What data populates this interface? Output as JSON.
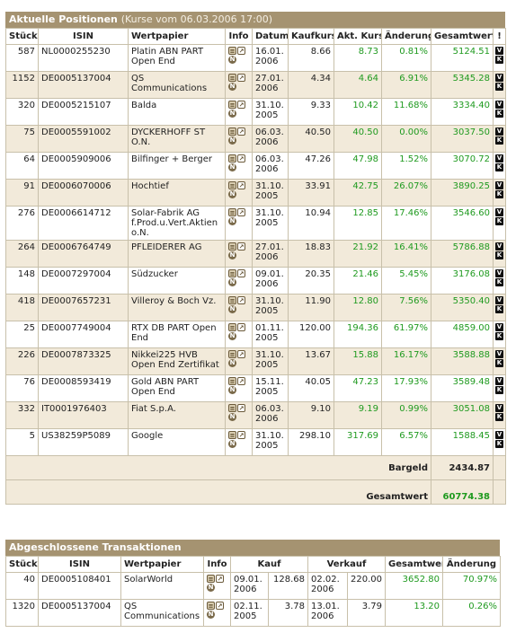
{
  "positions": {
    "title": "Aktuelle Positionen",
    "subtitle": "(Kurse vom 06.03.2006 17:00)",
    "headers": [
      "Stück",
      "ISIN",
      "Wertpapier",
      "Info",
      "Datum",
      "Kaufkurs",
      "Akt. Kurs",
      "Änderung",
      "Gesamtwert",
      "!"
    ],
    "rows": [
      {
        "qty": "587",
        "isin": "NL0000255230",
        "name": "Platin ABN PART Open End",
        "date": "16.01. 2006",
        "buy": "8.66",
        "cur": "8.73",
        "chg": "0.81%",
        "total": "5124.51"
      },
      {
        "qty": "1152",
        "isin": "DE0005137004",
        "name": "QS Communications",
        "date": "27.01. 2006",
        "buy": "4.34",
        "cur": "4.64",
        "chg": "6.91%",
        "total": "5345.28"
      },
      {
        "qty": "320",
        "isin": "DE0005215107",
        "name": "Balda",
        "date": "31.10. 2005",
        "buy": "9.33",
        "cur": "10.42",
        "chg": "11.68%",
        "total": "3334.40"
      },
      {
        "qty": "75",
        "isin": "DE0005591002",
        "name": "DYCKERHOFF ST O.N.",
        "date": "06.03. 2006",
        "buy": "40.50",
        "cur": "40.50",
        "chg": "0.00%",
        "total": "3037.50"
      },
      {
        "qty": "64",
        "isin": "DE0005909006",
        "name": "Bilfinger + Berger",
        "date": "06.03. 2006",
        "buy": "47.26",
        "cur": "47.98",
        "chg": "1.52%",
        "total": "3070.72"
      },
      {
        "qty": "91",
        "isin": "DE0006070006",
        "name": "Hochtief",
        "date": "31.10. 2005",
        "buy": "33.91",
        "cur": "42.75",
        "chg": "26.07%",
        "total": "3890.25"
      },
      {
        "qty": "276",
        "isin": "DE0006614712",
        "name": "Solar-Fabrik AG f.Prod.u.Vert.Aktien o.N.",
        "date": "31.10. 2005",
        "buy": "10.94",
        "cur": "12.85",
        "chg": "17.46%",
        "total": "3546.60"
      },
      {
        "qty": "264",
        "isin": "DE0006764749",
        "name": "PFLEIDERER AG",
        "date": "27.01. 2006",
        "buy": "18.83",
        "cur": "21.92",
        "chg": "16.41%",
        "total": "5786.88"
      },
      {
        "qty": "148",
        "isin": "DE0007297004",
        "name": "Südzucker",
        "date": "09.01. 2006",
        "buy": "20.35",
        "cur": "21.46",
        "chg": "5.45%",
        "total": "3176.08"
      },
      {
        "qty": "418",
        "isin": "DE0007657231",
        "name": "Villeroy & Boch Vz.",
        "date": "31.10. 2005",
        "buy": "11.90",
        "cur": "12.80",
        "chg": "7.56%",
        "total": "5350.40"
      },
      {
        "qty": "25",
        "isin": "DE0007749004",
        "name": "RTX DB PART Open End",
        "date": "01.11. 2005",
        "buy": "120.00",
        "cur": "194.36",
        "chg": "61.97%",
        "total": "4859.00"
      },
      {
        "qty": "226",
        "isin": "DE0007873325",
        "name": "Nikkei225 HVB Open End Zertifikat",
        "date": "31.10. 2005",
        "buy": "13.67",
        "cur": "15.88",
        "chg": "16.17%",
        "total": "3588.88"
      },
      {
        "qty": "76",
        "isin": "DE0008593419",
        "name": "Gold ABN PART Open End",
        "date": "15.11. 2005",
        "buy": "40.05",
        "cur": "47.23",
        "chg": "17.93%",
        "total": "3589.48"
      },
      {
        "qty": "332",
        "isin": "IT0001976403",
        "name": "Fiat S.p.A.",
        "date": "06.03. 2006",
        "buy": "9.10",
        "cur": "9.19",
        "chg": "0.99%",
        "total": "3051.08"
      },
      {
        "qty": "5",
        "isin": "US38259P5089",
        "name": "Google",
        "date": "31.10. 2005",
        "buy": "298.10",
        "cur": "317.69",
        "chg": "6.57%",
        "total": "1588.45"
      }
    ],
    "cash_label": "Bargeld",
    "cash_value": "2434.87",
    "total_label": "Gesamtwert",
    "total_value": "60774.38"
  },
  "transactions": {
    "title": "Abgeschlossene Transaktionen",
    "headers": [
      "Stück",
      "ISIN",
      "Wertpapier",
      "Info",
      "Kauf",
      "Verkauf",
      "Gesamtwert",
      "Änderung"
    ],
    "rows": [
      {
        "qty": "40",
        "isin": "DE0005108401",
        "name": "SolarWorld",
        "buy_date": "09.01. 2006",
        "buy_price": "128.68",
        "sell_date": "02.02. 2006",
        "sell_price": "220.00",
        "total": "3652.80",
        "chg": "70.97%"
      },
      {
        "qty": "1320",
        "isin": "DE0005137004",
        "name": "QS Communications",
        "buy_date": "02.11. 2005",
        "buy_price": "3.78",
        "sell_date": "13.01. 2006",
        "sell_price": "3.79",
        "total": "13.20",
        "chg": "0.26%"
      }
    ]
  },
  "icons": {
    "doc": "document-icon",
    "chart": "chart-icon",
    "news": "news-icon",
    "sell": "sell-v-icon",
    "buy": "buy-k-icon"
  },
  "colors": {
    "header_bg": "#a59371",
    "alt_row": "#f2eada",
    "positive": "#1f9a1f"
  }
}
